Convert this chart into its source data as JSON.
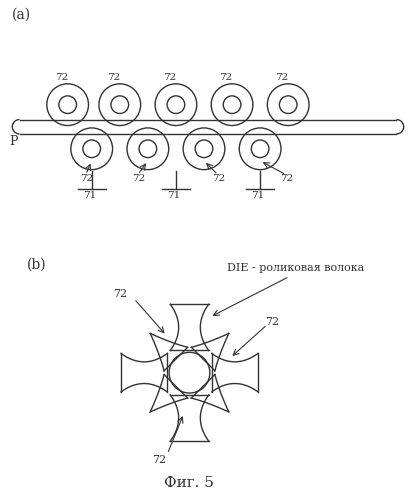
{
  "bg_color": "#ffffff",
  "line_color": "#333333",
  "label_a": "(a)",
  "label_b": "(b)",
  "label_P": "P",
  "label_71": "71",
  "label_72": "72",
  "label_die": "DIE - роликовая волока",
  "label_fig": "Фиг. 5",
  "font_size_label": 10,
  "font_size_fig": 11
}
